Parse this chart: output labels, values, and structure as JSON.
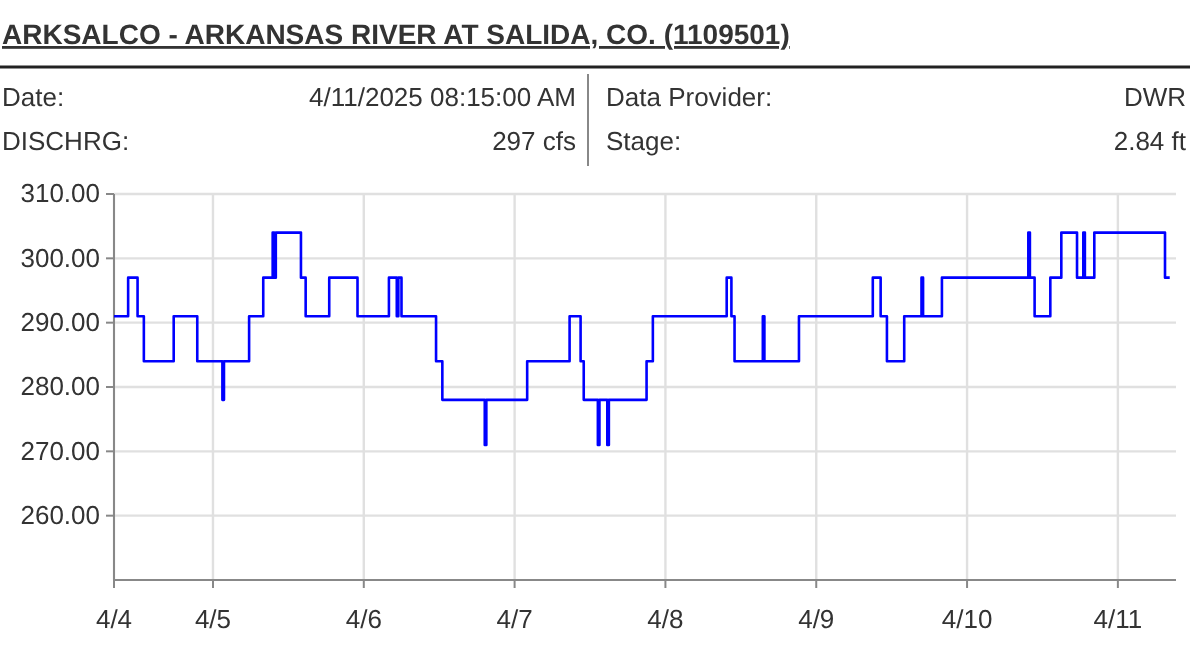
{
  "chart_data": {
    "type": "step",
    "title": "ARKSALCO - ARKANSAS RIVER AT SALIDA, CO. (1109501)",
    "annotations": [
      "Date:",
      "4/11/2025 08:15:00 AM",
      "Data Provider:",
      "DWR",
      "DISCHRG:",
      "297 cfs",
      "Stage:",
      "2.84 ft"
    ],
    "x": [
      "2025-04-04T08:15",
      "2025-04-04T10:30",
      "2025-04-04T12:00",
      "2025-04-04T13:00",
      "2025-04-04T17:45",
      "2025-04-04T21:30",
      "2025-04-05T01:30",
      "2025-04-05T01:45",
      "2025-04-05T05:45",
      "2025-04-05T08:00",
      "2025-04-05T09:30",
      "2025-04-05T09:45",
      "2025-04-05T10:00",
      "2025-04-05T14:00",
      "2025-04-05T14:45",
      "2025-04-05T18:30",
      "2025-04-05T23:00",
      "2025-04-06T04:00",
      "2025-04-06T05:15",
      "2025-04-06T05:30",
      "2025-04-06T06:00",
      "2025-04-06T11:30",
      "2025-04-06T12:30",
      "2025-04-06T19:15",
      "2025-04-06T19:30",
      "2025-04-07T02:00",
      "2025-04-07T08:45",
      "2025-04-07T10:30",
      "2025-04-07T11:00",
      "2025-04-07T13:15",
      "2025-04-07T13:30",
      "2025-04-07T14:45",
      "2025-04-07T15:00",
      "2025-04-07T21:00",
      "2025-04-07T22:00",
      "2025-04-08T09:45",
      "2025-04-08T10:30",
      "2025-04-08T11:00",
      "2025-04-08T15:30",
      "2025-04-08T15:45",
      "2025-04-08T21:15",
      "2025-04-09T09:00",
      "2025-04-09T10:15",
      "2025-04-09T11:15",
      "2025-04-09T14:00",
      "2025-04-09T16:45",
      "2025-04-09T17:00",
      "2025-04-09T20:00",
      "2025-04-10T09:45",
      "2025-04-10T10:00",
      "2025-04-10T10:45",
      "2025-04-10T13:15",
      "2025-04-10T15:00",
      "2025-04-10T17:30",
      "2025-04-10T18:30",
      "2025-04-10T18:45",
      "2025-04-10T20:15",
      "2025-04-11T07:30",
      "2025-04-11T08:15"
    ],
    "series": [
      {
        "color": "#0000ff",
        "values": [
          291,
          297,
          291,
          284,
          291,
          284,
          278,
          284,
          291,
          297,
          304,
          297,
          304,
          297,
          291,
          297,
          291,
          297,
          291,
          297,
          291,
          284,
          278,
          271,
          278,
          284,
          291,
          284,
          278,
          271,
          278,
          271,
          278,
          284,
          291,
          297,
          291,
          284,
          291,
          284,
          291,
          297,
          291,
          284,
          291,
          297,
          291,
          297,
          304,
          297,
          291,
          297,
          304,
          297,
          304,
          297,
          304,
          297,
          297
        ]
      }
    ],
    "xlim": [
      "2025-04-04T08:15",
      "2025-04-11T09:15"
    ],
    "xticks": [
      {
        "value": "2025-04-04T08:15",
        "label": "4/4"
      },
      {
        "value": "2025-04-05",
        "label": "4/5"
      },
      {
        "value": "2025-04-06",
        "label": "4/6"
      },
      {
        "value": "2025-04-07",
        "label": "4/7"
      },
      {
        "value": "2025-04-08",
        "label": "4/8"
      },
      {
        "value": "2025-04-09",
        "label": "4/9"
      },
      {
        "value": "2025-04-10",
        "label": "4/10"
      },
      {
        "value": "2025-04-11",
        "label": "4/11"
      }
    ],
    "ylim": [
      250,
      310
    ],
    "yticks": [
      {
        "value": 260,
        "label": "260.00"
      },
      {
        "value": 270,
        "label": "270.00"
      },
      {
        "value": 280,
        "label": "280.00"
      },
      {
        "value": 290,
        "label": "290.00"
      },
      {
        "value": 300,
        "label": "300.00"
      },
      {
        "value": 310,
        "label": "310.00"
      }
    ],
    "grid": true
  }
}
